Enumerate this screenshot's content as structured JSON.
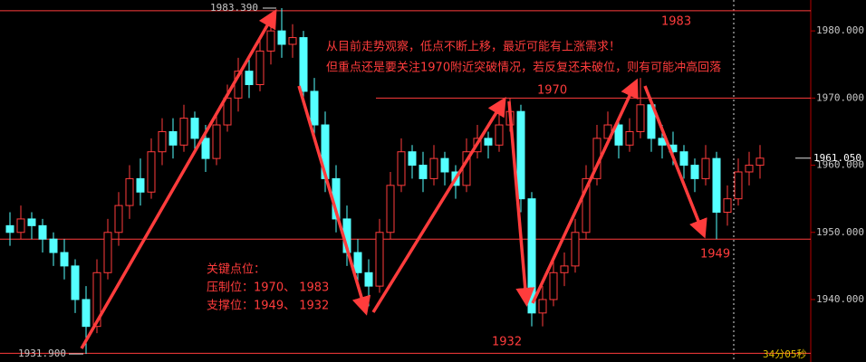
{
  "chart_data": {
    "type": "candlestick",
    "up_color": "#ff3c3c",
    "down_color": "#54ffff",
    "ylim": [
      1930.7,
      1984.6
    ],
    "yticks": [
      {
        "value": 1940,
        "label": "1940.000"
      },
      {
        "value": 1950,
        "label": "1950.000"
      },
      {
        "value": 1960,
        "label": "1960.000"
      },
      {
        "value": 1970,
        "label": "1970.000"
      },
      {
        "value": 1980,
        "label": "1980.000"
      }
    ],
    "ohlc": [
      [
        1951,
        1953,
        1948,
        1950
      ],
      [
        1950,
        1954,
        1949,
        1952
      ],
      [
        1952,
        1953,
        1949,
        1951
      ],
      [
        1951,
        1952,
        1947,
        1949
      ],
      [
        1949,
        1950,
        1945,
        1947
      ],
      [
        1947,
        1949,
        1943,
        1945
      ],
      [
        1945,
        1946,
        1938,
        1940
      ],
      [
        1940,
        1942,
        1931.9,
        1936
      ],
      [
        1936,
        1946,
        1935,
        1944
      ],
      [
        1944,
        1952,
        1943,
        1950
      ],
      [
        1950,
        1956,
        1948,
        1954
      ],
      [
        1954,
        1960,
        1952,
        1958
      ],
      [
        1958,
        1961,
        1954,
        1956
      ],
      [
        1956,
        1964,
        1955,
        1962
      ],
      [
        1962,
        1967,
        1960,
        1965
      ],
      [
        1965,
        1967,
        1961,
        1963
      ],
      [
        1963,
        1969,
        1962,
        1967
      ],
      [
        1967,
        1968,
        1962,
        1964
      ],
      [
        1964,
        1966,
        1959,
        1961
      ],
      [
        1961,
        1968,
        1960,
        1966
      ],
      [
        1966,
        1972,
        1965,
        1970
      ],
      [
        1970,
        1976,
        1968,
        1974
      ],
      [
        1974,
        1976,
        1970,
        1972
      ],
      [
        1972,
        1979,
        1971,
        1977
      ],
      [
        1977,
        1982,
        1975,
        1980
      ],
      [
        1980,
        1983.39,
        1976,
        1978
      ],
      [
        1978,
        1981,
        1976,
        1979
      ],
      [
        1979,
        1980,
        1969,
        1971
      ],
      [
        1971,
        1973,
        1964,
        1966
      ],
      [
        1966,
        1968,
        1956,
        1958
      ],
      [
        1958,
        1960,
        1950,
        1952
      ],
      [
        1952,
        1954,
        1945,
        1947
      ],
      [
        1947,
        1949,
        1942,
        1944
      ],
      [
        1944,
        1946,
        1939,
        1942
      ],
      [
        1942,
        1952,
        1941,
        1950
      ],
      [
        1950,
        1959,
        1949,
        1957
      ],
      [
        1957,
        1964,
        1956,
        1962
      ],
      [
        1962,
        1963,
        1958,
        1960
      ],
      [
        1960,
        1962,
        1956,
        1958
      ],
      [
        1958,
        1963,
        1957,
        1961
      ],
      [
        1961,
        1962,
        1957,
        1959
      ],
      [
        1959,
        1960,
        1955,
        1957
      ],
      [
        1957,
        1964,
        1956,
        1962
      ],
      [
        1962,
        1966,
        1961,
        1964
      ],
      [
        1964,
        1965,
        1961,
        1963
      ],
      [
        1963,
        1968,
        1962,
        1966
      ],
      [
        1966,
        1970,
        1965,
        1968
      ],
      [
        1968,
        1969,
        1953,
        1955
      ],
      [
        1955,
        1956,
        1936,
        1938
      ],
      [
        1938,
        1942,
        1936,
        1940
      ],
      [
        1940,
        1946,
        1939,
        1944
      ],
      [
        1944,
        1947,
        1942,
        1945
      ],
      [
        1945,
        1952,
        1944,
        1950
      ],
      [
        1950,
        1960,
        1949,
        1958
      ],
      [
        1958,
        1966,
        1957,
        1964
      ],
      [
        1964,
        1968,
        1963,
        1966
      ],
      [
        1966,
        1967,
        1961,
        1963
      ],
      [
        1963,
        1967,
        1962,
        1965
      ],
      [
        1965,
        1973,
        1964,
        1969
      ],
      [
        1969,
        1970,
        1962,
        1964
      ],
      [
        1964,
        1966,
        1961,
        1963
      ],
      [
        1963,
        1965,
        1960,
        1962
      ],
      [
        1962,
        1963,
        1958,
        1960
      ],
      [
        1960,
        1961,
        1956,
        1958
      ],
      [
        1958,
        1963,
        1957,
        1961
      ],
      [
        1961,
        1962,
        1949,
        1953
      ],
      [
        1953,
        1957,
        1951,
        1955
      ],
      [
        1955,
        1961,
        1954,
        1959
      ],
      [
        1959,
        1962,
        1957,
        1960
      ],
      [
        1960,
        1963,
        1958,
        1961.05
      ]
    ],
    "high_label": {
      "value": 1983.39,
      "label": "1983.390"
    },
    "low_label": {
      "value": 1931.9,
      "label": "1931.900"
    },
    "current_price": {
      "value": 1961.05,
      "label": "1961.050"
    },
    "levels": [
      1983,
      1970,
      1949,
      1932
    ],
    "annotations": [
      "从目前走势观察，低点不断上移，最近可能有上涨需求！",
      "但重点还是要关注1970附近突破情况，若反复还未破位，则有可能冲高回落",
      "关键点位：",
      "压制位：1970、 1983",
      "支撑位：1949、 1932"
    ],
    "timer": "34分05秒"
  }
}
